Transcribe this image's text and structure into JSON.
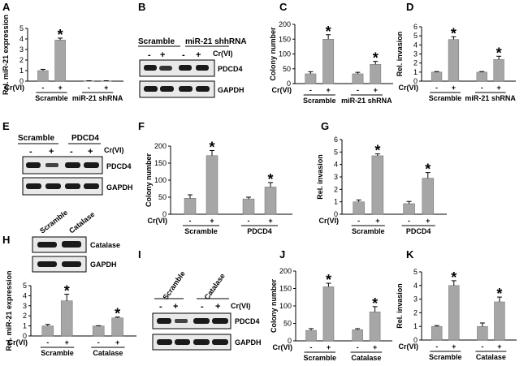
{
  "figure": {
    "panel_labels": [
      "A",
      "B",
      "C",
      "D",
      "E",
      "F",
      "G",
      "H",
      "I",
      "J",
      "K"
    ],
    "cr_label": "Cr(VI)",
    "minus": "-",
    "plus": "+",
    "significance_marker": "*"
  },
  "colors": {
    "bar": "#a6a6a6",
    "blot_bg": "#e9e9e9",
    "band": "#1a1a1a"
  },
  "blots": {
    "B": {
      "groups": [
        "Scramble",
        "miR-21 shhRNA"
      ],
      "cr_label": "Cr(VI)",
      "bands": [
        "PDCD4",
        "GAPDH"
      ]
    },
    "E": {
      "groups": [
        "Scramble",
        "PDCD4"
      ],
      "cr_label": "Cr(VI)",
      "bands": [
        "PDCD4",
        "GAPDH"
      ]
    },
    "H": {
      "groups": [
        "Scramble",
        "Catalase"
      ],
      "bands": [
        "Catalase",
        "GAPDH"
      ]
    },
    "I": {
      "groups": [
        "Scramble",
        "Catalase"
      ],
      "cr_label": "Cr(VI)",
      "bands": [
        "PDCD4",
        "GAPDH"
      ]
    }
  },
  "chart_data": [
    {
      "panel": "A",
      "type": "bar",
      "ylabel": "Rel. miR-21 expression",
      "ylim": [
        0,
        5
      ],
      "yticks": [
        0,
        1,
        2,
        3,
        4,
        5
      ],
      "cr_label": "Cr(VI)",
      "conditions": [
        "-",
        "+",
        "-",
        "+"
      ],
      "groups": [
        "Scramble",
        "miR-21 shRNA"
      ],
      "values": [
        1.0,
        3.9,
        0.03,
        0.03
      ],
      "errors": [
        0.12,
        0.18,
        0.01,
        0.01
      ],
      "significant": [
        false,
        true,
        false,
        false
      ]
    },
    {
      "panel": "C",
      "type": "bar",
      "ylabel": "Colony number",
      "ylim": [
        0,
        200
      ],
      "yticks": [
        0,
        50,
        100,
        150,
        200
      ],
      "cr_label": "Cr(VI)",
      "conditions": [
        "-",
        "+",
        "-",
        "+"
      ],
      "groups": [
        "Scramble",
        "miR-21 shRNA"
      ],
      "values": [
        33,
        150,
        33,
        65
      ],
      "errors": [
        7,
        15,
        5,
        10
      ],
      "significant": [
        false,
        true,
        false,
        true
      ]
    },
    {
      "panel": "D",
      "type": "bar",
      "ylabel": "Rel. invasion",
      "ylim": [
        0,
        6
      ],
      "yticks": [
        0,
        1,
        2,
        3,
        4,
        5,
        6
      ],
      "cr_label": "Cr(VI)",
      "conditions": [
        "-",
        "+",
        "-",
        "+"
      ],
      "groups": [
        "Scramble",
        "miR-21 shRNA"
      ],
      "values": [
        1.0,
        4.6,
        1.0,
        2.4
      ],
      "errors": [
        0.06,
        0.3,
        0.06,
        0.35
      ],
      "significant": [
        false,
        true,
        false,
        true
      ]
    },
    {
      "panel": "F",
      "type": "bar",
      "ylabel": "Colony number",
      "ylim": [
        0,
        200
      ],
      "yticks": [
        0,
        50,
        100,
        150,
        200
      ],
      "cr_label": "Cr(VI)",
      "conditions": [
        "-",
        "+",
        "-",
        "+"
      ],
      "groups": [
        "Scramble",
        "PDCD4"
      ],
      "values": [
        47,
        172,
        45,
        80
      ],
      "errors": [
        10,
        15,
        5,
        13
      ],
      "significant": [
        false,
        true,
        false,
        true
      ]
    },
    {
      "panel": "G",
      "type": "bar",
      "ylabel": "Rel. invasion",
      "ylim": [
        0,
        6
      ],
      "yticks": [
        0,
        1,
        2,
        3,
        4,
        5,
        6
      ],
      "cr_label": "Cr(VI)",
      "conditions": [
        "-",
        "+",
        "-",
        "+"
      ],
      "groups": [
        "Scramble",
        "PDCD4"
      ],
      "values": [
        1.0,
        4.7,
        0.85,
        2.9
      ],
      "errors": [
        0.15,
        0.15,
        0.18,
        0.45
      ],
      "significant": [
        false,
        true,
        false,
        true
      ]
    },
    {
      "panel": "H",
      "type": "bar",
      "ylabel": "Rel. miR-21 expression",
      "ylim": [
        0,
        5
      ],
      "yticks": [
        0,
        1,
        2,
        3,
        4,
        5
      ],
      "cr_label": "Cr(VI)",
      "conditions": [
        "-",
        "+",
        "-",
        "+"
      ],
      "groups": [
        "Scramble",
        "Catalase"
      ],
      "values": [
        1.0,
        3.5,
        1.0,
        1.8
      ],
      "errors": [
        0.15,
        0.65,
        0.02,
        0.08
      ],
      "significant": [
        false,
        true,
        false,
        true
      ]
    },
    {
      "panel": "J",
      "type": "bar",
      "ylabel": "Colony number",
      "ylim": [
        0,
        200
      ],
      "yticks": [
        0,
        50,
        100,
        150,
        200
      ],
      "cr_label": "Cr(VI)",
      "conditions": [
        "-",
        "+",
        "-",
        "+"
      ],
      "groups": [
        "Scramble",
        "Catalase"
      ],
      "values": [
        30,
        155,
        32,
        83
      ],
      "errors": [
        5,
        10,
        3,
        15
      ],
      "significant": [
        false,
        true,
        false,
        true
      ]
    },
    {
      "panel": "K",
      "type": "bar",
      "ylabel": "Rel. invasion",
      "ylim": [
        0,
        5
      ],
      "yticks": [
        0,
        1,
        2,
        3,
        4,
        5
      ],
      "cr_label": "Cr(VI)",
      "conditions": [
        "-",
        "+",
        "-",
        "+"
      ],
      "groups": [
        "Scramble",
        "Catalase"
      ],
      "values": [
        1.0,
        4.0,
        1.0,
        2.8
      ],
      "errors": [
        0.06,
        0.35,
        0.25,
        0.35
      ],
      "significant": [
        false,
        true,
        false,
        true
      ]
    }
  ]
}
